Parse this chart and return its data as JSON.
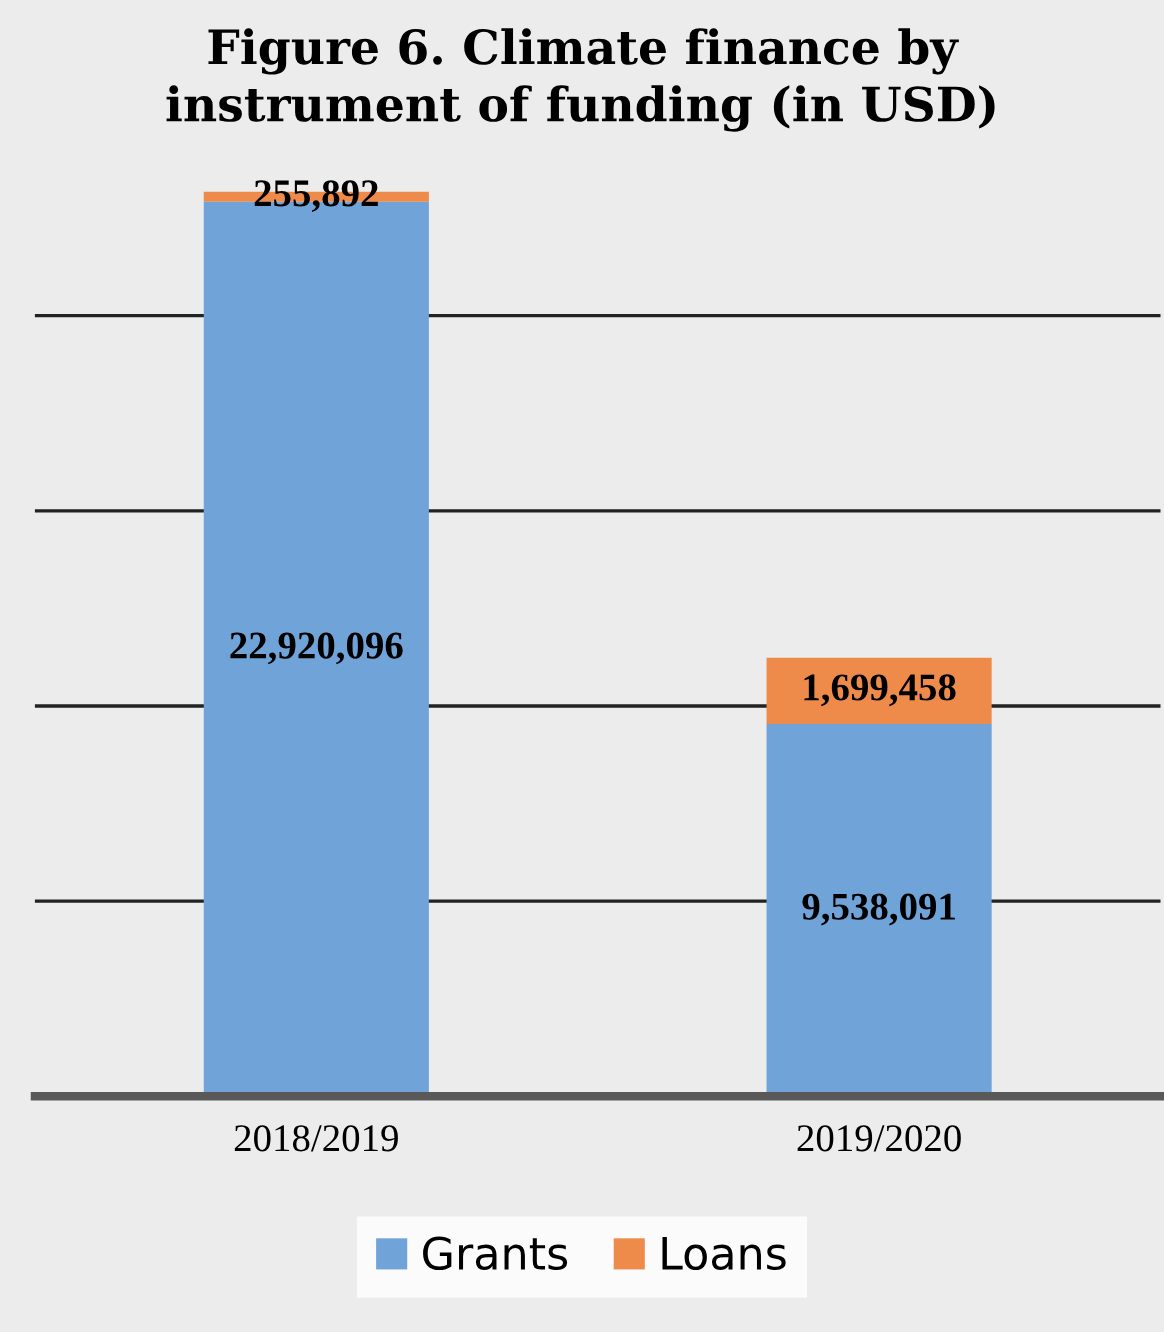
{
  "chart_data": {
    "type": "bar",
    "title": "Figure 6. Climate finance by\ninstrument of funding (in USD)",
    "categories": [
      "2018/2019",
      "2019/2020"
    ],
    "stacked": true,
    "series": [
      {
        "name": "Grants",
        "color": "#70a3d8",
        "values": [
          22920096,
          9538091
        ],
        "value_labels": [
          "22,920,096",
          "9,538,091"
        ]
      },
      {
        "name": "Loans",
        "color": "#ee8a4a",
        "values": [
          255892,
          1699458
        ],
        "value_labels": [
          "255,892",
          "1,699,458"
        ]
      }
    ],
    "yticks": [
      {
        "value": 0,
        "label": null
      },
      {
        "value": 5000000,
        "label": null
      },
      {
        "value": 10000000,
        "label": null
      },
      {
        "value": 15000000,
        "label": null
      },
      {
        "value": 20000000,
        "label": null
      }
    ],
    "tick_labels": "x",
    "grid": "y",
    "legend": "bottom"
  }
}
